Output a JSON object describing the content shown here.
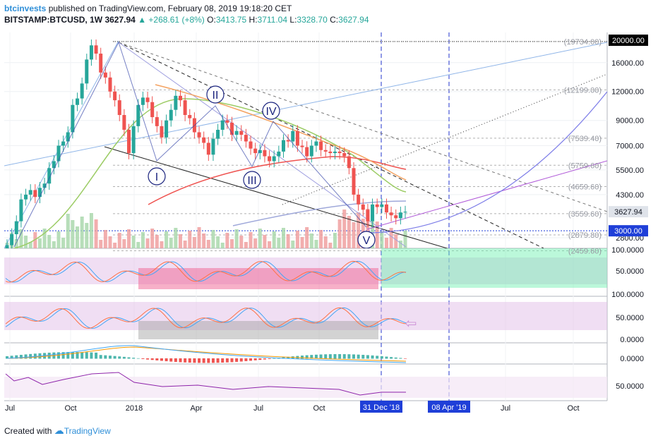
{
  "header": {
    "publisher": "btcinvests",
    "published_text": "published on TradingView.com, February 08, 2019 19:18:20 CET",
    "symbol": "BITSTAMP:BTCUSD, 1W",
    "last": "3627.94",
    "change": "▲ +268.61 (+8%)",
    "o_label": "O:",
    "o_value": "3413.75",
    "h_label": "H:",
    "h_value": "3711.04",
    "l_label": "L:",
    "l_value": "3328.70",
    "c_label": "C:",
    "c_value": "3627.94"
  },
  "footer": {
    "created_with": "Created with",
    "brand": "TradingView"
  },
  "colors": {
    "up": "#26a69a",
    "down": "#ef5350",
    "accent": "#2962ff",
    "waves": "#3949ab"
  },
  "chart_data": [
    {
      "type": "line",
      "panel": "price",
      "scale": "log",
      "ylim": [
        2300,
        21000
      ],
      "x_ticks": [
        "Jul",
        "Oct",
        "2018",
        "Apr",
        "Jul",
        "Oct",
        "31 Dec '18",
        "08 Apr '19",
        "Jul",
        "Oct"
      ],
      "y_ticks": [
        "16000.00",
        "12000.00",
        "9000.00",
        "7000.00",
        "5500.00",
        "4300.00",
        "2800.00"
      ],
      "highlighted_prices": [
        {
          "value": 20000,
          "label": "20000.00"
        },
        {
          "value": 3627.94,
          "label": "3627.94"
        },
        {
          "value": 3000,
          "label": "3000.00"
        }
      ],
      "fib_levels": [
        {
          "value": 19734,
          "label": "(19734.00)"
        },
        {
          "value": 12199,
          "label": "(12199.00)"
        },
        {
          "value": 7539.4,
          "label": "(7539.40)"
        },
        {
          "value": 5759.6,
          "label": "(5759.60)"
        },
        {
          "value": 4659.6,
          "label": "(4659.60)"
        },
        {
          "value": 3559.6,
          "label": "(3559.60)"
        },
        {
          "value": 2879.8,
          "label": "(2879.80)"
        },
        {
          "value": 2459.6,
          "label": "(2459.60)"
        }
      ],
      "wave_labels": [
        "I",
        "II",
        "III",
        "IV",
        "V"
      ],
      "series": [
        {
          "name": "BTCUSD weekly close",
          "values": [
            2600,
            2900,
            3300,
            4100,
            4300,
            4500,
            4200,
            4600,
            4800,
            5600,
            6000,
            7000,
            7300,
            8000,
            10500,
            11200,
            13000,
            16500,
            19000,
            17500,
            14500,
            13800,
            12000,
            11000,
            9500,
            8200,
            6500,
            8500,
            10500,
            11300,
            10800,
            9300,
            8500,
            7600,
            9000,
            10000,
            11500,
            11000,
            9500,
            9200,
            8000,
            7600,
            7200,
            6400,
            7500,
            8200,
            9000,
            8800,
            7800,
            8100,
            7800,
            7300,
            6800,
            6500,
            6700,
            6300,
            6000,
            6300,
            6600,
            7400,
            7300,
            8100,
            7000,
            6900,
            6300,
            7000,
            7300,
            6700,
            6600,
            6500,
            6600,
            6500,
            6300,
            5600,
            4300,
            3900,
            3700,
            3300,
            3900,
            3800,
            3900,
            3600,
            3500,
            3400,
            3600,
            3627.94
          ]
        }
      ]
    },
    {
      "type": "line",
      "panel": "stoch-rsi-1",
      "y_ticks": [
        "100.0000",
        "50.0000"
      ]
    },
    {
      "type": "line",
      "panel": "stoch-rsi-2",
      "y_ticks": [
        "100.0000",
        "50.0000",
        "0.0000"
      ]
    },
    {
      "type": "bar",
      "panel": "macd",
      "y_ticks": [
        "0.0000"
      ]
    },
    {
      "type": "line",
      "panel": "rsi",
      "y_ticks": [
        "50.0000"
      ]
    }
  ]
}
